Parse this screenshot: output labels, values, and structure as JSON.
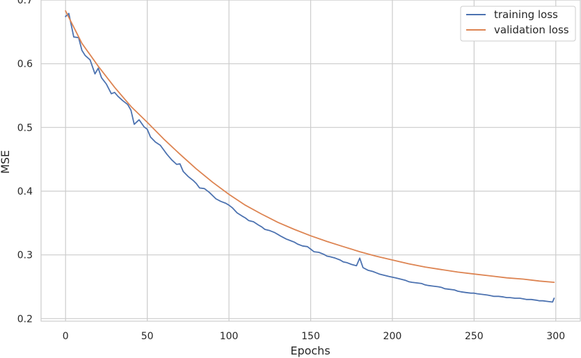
{
  "chart_data": {
    "type": "line",
    "title": "",
    "xlabel": "Epochs",
    "ylabel": "MSE",
    "xlim": [
      -15,
      315
    ],
    "ylim": [
      0.196,
      0.7
    ],
    "x_ticks": [
      0,
      50,
      100,
      150,
      200,
      250,
      300
    ],
    "y_ticks": [
      0.2,
      0.3,
      0.4,
      0.5,
      0.6,
      0.7
    ],
    "x_tick_labels": [
      "0",
      "50",
      "100",
      "150",
      "200",
      "250",
      "300"
    ],
    "y_tick_labels": [
      "0.2",
      "0.3",
      "0.4",
      "0.5",
      "0.6",
      "0.7"
    ],
    "grid": true,
    "legend_position": "top-right",
    "series": [
      {
        "name": "training loss",
        "color": "#4c72b0",
        "x": [
          0,
          2,
          5,
          8,
          10,
          12,
          15,
          18,
          20,
          22,
          25,
          28,
          30,
          32,
          35,
          38,
          40,
          42,
          45,
          48,
          50,
          52,
          55,
          58,
          60,
          62,
          65,
          68,
          70,
          72,
          75,
          78,
          80,
          82,
          85,
          88,
          90,
          92,
          95,
          98,
          100,
          102,
          105,
          108,
          110,
          112,
          115,
          118,
          120,
          122,
          125,
          128,
          130,
          132,
          135,
          138,
          140,
          142,
          145,
          148,
          150,
          152,
          155,
          158,
          160,
          162,
          165,
          168,
          170,
          172,
          175,
          178,
          180,
          182,
          185,
          188,
          190,
          192,
          195,
          198,
          200,
          202,
          205,
          208,
          210,
          212,
          215,
          218,
          220,
          222,
          225,
          228,
          230,
          232,
          235,
          238,
          240,
          242,
          245,
          248,
          250,
          252,
          255,
          258,
          260,
          262,
          265,
          268,
          270,
          272,
          275,
          278,
          280,
          282,
          285,
          288,
          290,
          292,
          295,
          298,
          299
        ],
        "y": [
          0.674,
          0.679,
          0.642,
          0.641,
          0.621,
          0.613,
          0.606,
          0.584,
          0.593,
          0.578,
          0.568,
          0.553,
          0.555,
          0.549,
          0.542,
          0.536,
          0.527,
          0.505,
          0.512,
          0.501,
          0.497,
          0.485,
          0.477,
          0.472,
          0.465,
          0.458,
          0.449,
          0.442,
          0.443,
          0.431,
          0.423,
          0.417,
          0.412,
          0.405,
          0.404,
          0.398,
          0.393,
          0.388,
          0.384,
          0.381,
          0.378,
          0.374,
          0.366,
          0.361,
          0.358,
          0.354,
          0.352,
          0.347,
          0.344,
          0.34,
          0.338,
          0.335,
          0.332,
          0.329,
          0.325,
          0.322,
          0.32,
          0.317,
          0.314,
          0.313,
          0.309,
          0.305,
          0.304,
          0.301,
          0.298,
          0.297,
          0.295,
          0.292,
          0.289,
          0.288,
          0.285,
          0.283,
          0.295,
          0.28,
          0.276,
          0.274,
          0.272,
          0.27,
          0.268,
          0.266,
          0.265,
          0.264,
          0.262,
          0.26,
          0.258,
          0.257,
          0.256,
          0.255,
          0.253,
          0.252,
          0.251,
          0.25,
          0.249,
          0.247,
          0.246,
          0.245,
          0.243,
          0.242,
          0.241,
          0.24,
          0.24,
          0.239,
          0.238,
          0.237,
          0.236,
          0.235,
          0.235,
          0.234,
          0.233,
          0.233,
          0.232,
          0.232,
          0.231,
          0.23,
          0.23,
          0.229,
          0.228,
          0.228,
          0.227,
          0.226,
          0.232
        ]
      },
      {
        "name": "validation loss",
        "color": "#dd8452",
        "x": [
          0,
          10,
          20,
          30,
          40,
          50,
          60,
          70,
          80,
          90,
          100,
          110,
          120,
          130,
          140,
          150,
          160,
          170,
          180,
          190,
          200,
          210,
          220,
          230,
          240,
          250,
          260,
          270,
          280,
          290,
          299
        ],
        "y": [
          0.683,
          0.632,
          0.596,
          0.563,
          0.533,
          0.508,
          0.482,
          0.458,
          0.435,
          0.414,
          0.395,
          0.378,
          0.364,
          0.351,
          0.34,
          0.33,
          0.321,
          0.313,
          0.305,
          0.298,
          0.292,
          0.286,
          0.281,
          0.277,
          0.273,
          0.27,
          0.267,
          0.264,
          0.262,
          0.259,
          0.257
        ]
      }
    ]
  }
}
